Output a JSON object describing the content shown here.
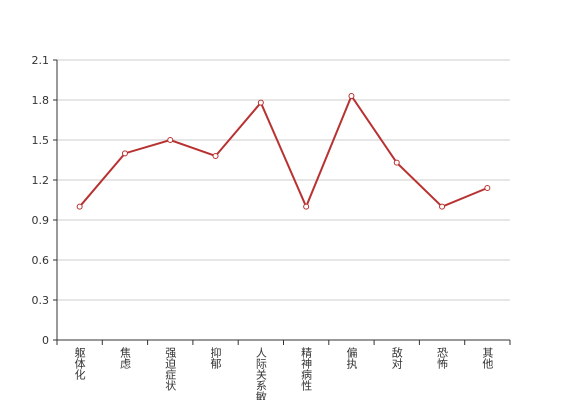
{
  "chart_data": {
    "type": "line",
    "categories": [
      "躯体化",
      "焦虑",
      "强迫症状",
      "抑郁",
      "人际关系敏感",
      "精神病性",
      "偏执",
      "敌对",
      "恐怖",
      "其他"
    ],
    "values": [
      1.0,
      1.4,
      1.5,
      1.38,
      1.78,
      1.0,
      1.83,
      1.33,
      1.0,
      1.14
    ],
    "color": "#b83232",
    "ylim": [
      0,
      2.1
    ],
    "yticks": [
      0,
      0.3,
      0.6,
      0.9,
      1.2,
      1.5,
      1.8,
      2.1
    ],
    "grid": true
  }
}
